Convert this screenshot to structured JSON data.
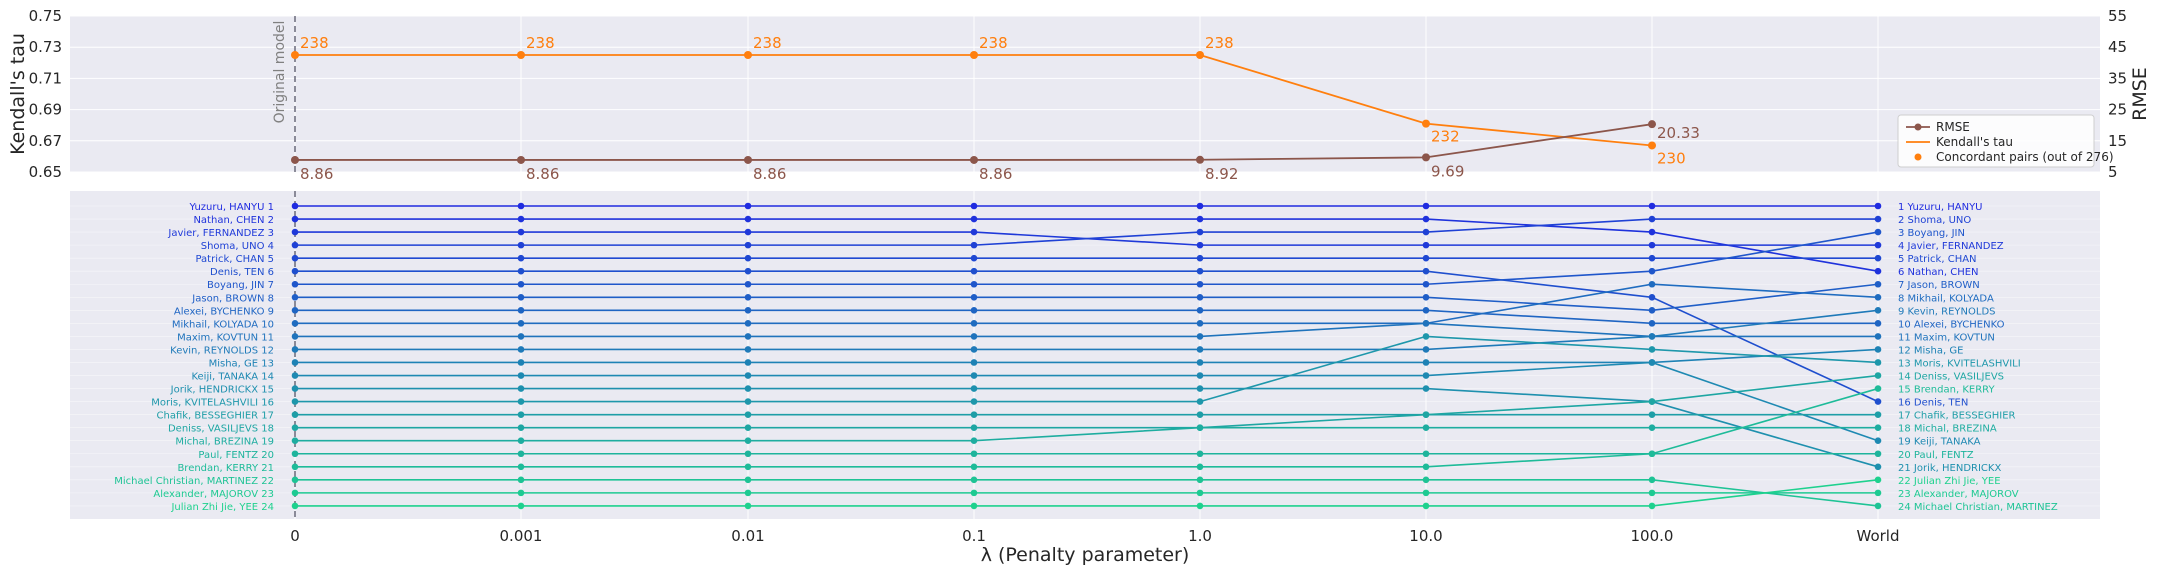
{
  "chart_data": [
    {
      "type": "line",
      "panel": "top",
      "categories": [
        "0",
        "0.001",
        "0.01",
        "0.1",
        "1.0",
        "10.0",
        "100.0"
      ],
      "left_axis": {
        "label": "Kendall's tau",
        "range": [
          0.65,
          0.75
        ],
        "ticks": [
          "0.65",
          "0.67",
          "0.69",
          "0.71",
          "0.73",
          "0.75"
        ]
      },
      "right_axis": {
        "label": "RMSE",
        "range": [
          5,
          55
        ],
        "ticks": [
          "5",
          "15",
          "25",
          "35",
          "45",
          "55"
        ]
      },
      "series": [
        {
          "name": "RMSE",
          "axis": "right",
          "color": "#8c564b",
          "marker": "circle",
          "values": [
            8.86,
            8.86,
            8.86,
            8.86,
            8.92,
            9.69,
            20.33
          ],
          "labels": [
            "8.86",
            "8.86",
            "8.86",
            "8.86",
            "8.92",
            "9.69",
            "20.33"
          ]
        },
        {
          "name": "Kendall's tau",
          "axis": "left",
          "color": "#ff7f0e",
          "marker": "none",
          "values": [
            0.725,
            0.725,
            0.725,
            0.725,
            0.725,
            0.681,
            0.667
          ]
        },
        {
          "name": "Concordant pairs (out of 276)",
          "axis": "left",
          "color": "#ff7f0e",
          "marker": "circle",
          "values": [
            0.725,
            0.725,
            0.725,
            0.725,
            0.725,
            0.681,
            0.667
          ],
          "labels": [
            "238",
            "238",
            "238",
            "238",
            "238",
            "232",
            "230"
          ]
        }
      ],
      "annotation": "Original model",
      "legend_position": "lower-right",
      "grid": true
    },
    {
      "type": "line",
      "panel": "bottom",
      "xlabel": "λ (Penalty parameter)",
      "categories": [
        "0",
        "0.001",
        "0.01",
        "0.1",
        "1.0",
        "10.0",
        "100.0",
        "World"
      ],
      "left_labels": [
        "Yuzuru, HANYU 1",
        "Nathan, CHEN 2",
        "Javier, FERNANDEZ 3",
        "Shoma, UNO 4",
        "Patrick, CHAN 5",
        "Denis, TEN 6",
        "Boyang, JIN 7",
        "Jason, BROWN 8",
        "Alexei, BYCHENKO 9",
        "Mikhail, KOLYADA 10",
        "Maxim, KOVTUN 11",
        "Kevin, REYNOLDS 12",
        "Misha, GE 13",
        "Keiji, TANAKA 14",
        "Jorik, HENDRICKX 15",
        "Moris, KVITELASHVILI 16",
        "Chafik, BESSEGHIER 17",
        "Deniss, VASILJEVS 18",
        "Michal, BREZINA 19",
        "Paul, FENTZ 20",
        "Brendan, KERRY 21",
        "Michael Christian, MARTINEZ 22",
        "Alexander, MAJOROV 23",
        "Julian Zhi Jie, YEE 24"
      ],
      "right_labels": [
        "1 Yuzuru, HANYU",
        "2 Shoma, UNO",
        "3 Boyang, JIN",
        "4 Javier, FERNANDEZ",
        "5 Patrick, CHAN",
        "6 Nathan, CHEN",
        "7 Jason, BROWN",
        "8 Mikhail, KOLYADA",
        "9 Kevin, REYNOLDS",
        "10 Alexei, BYCHENKO",
        "11 Maxim, KOVTUN",
        "12 Misha, GE",
        "13 Moris, KVITELASHVILI",
        "14 Deniss, VASILJEVS",
        "15 Brendan, KERRY",
        "16 Denis, TEN",
        "17 Chafik, BESSEGHIER",
        "18 Michal, BREZINA",
        "19 Keiji, TANAKA",
        "20 Paul, FENTZ",
        "21 Jorik, HENDRICKX",
        "22 Julian Zhi Jie, YEE",
        "23 Alexander, MAJOROV",
        "24 Michael Christian, MARTINEZ"
      ],
      "series": [
        {
          "name": "Yuzuru, HANYU",
          "ranks": [
            1,
            1,
            1,
            1,
            1,
            1,
            1,
            1
          ]
        },
        {
          "name": "Nathan, CHEN",
          "ranks": [
            2,
            2,
            2,
            2,
            2,
            2,
            3,
            6
          ]
        },
        {
          "name": "Javier, FERNANDEZ",
          "ranks": [
            3,
            3,
            3,
            3,
            4,
            4,
            4,
            4
          ]
        },
        {
          "name": "Shoma, UNO",
          "ranks": [
            4,
            4,
            4,
            4,
            3,
            3,
            2,
            2
          ]
        },
        {
          "name": "Patrick, CHAN",
          "ranks": [
            5,
            5,
            5,
            5,
            5,
            5,
            5,
            5
          ]
        },
        {
          "name": "Denis, TEN",
          "ranks": [
            6,
            6,
            6,
            6,
            6,
            6,
            8,
            16
          ]
        },
        {
          "name": "Boyang, JIN",
          "ranks": [
            7,
            7,
            7,
            7,
            7,
            7,
            6,
            3
          ]
        },
        {
          "name": "Jason, BROWN",
          "ranks": [
            8,
            8,
            8,
            8,
            8,
            8,
            9,
            7
          ]
        },
        {
          "name": "Alexei, BYCHENKO",
          "ranks": [
            9,
            9,
            9,
            9,
            9,
            9,
            10,
            10
          ]
        },
        {
          "name": "Mikhail, KOLYADA",
          "ranks": [
            10,
            10,
            10,
            10,
            10,
            10,
            7,
            8
          ]
        },
        {
          "name": "Maxim, KOVTUN",
          "ranks": [
            11,
            11,
            11,
            11,
            11,
            10,
            11,
            11
          ]
        },
        {
          "name": "Kevin, REYNOLDS",
          "ranks": [
            12,
            12,
            12,
            12,
            12,
            12,
            11,
            9
          ]
        },
        {
          "name": "Misha, GE",
          "ranks": [
            13,
            13,
            13,
            13,
            13,
            13,
            13,
            12
          ]
        },
        {
          "name": "Keiji, TANAKA",
          "ranks": [
            14,
            14,
            14,
            14,
            14,
            14,
            13,
            19
          ]
        },
        {
          "name": "Jorik, HENDRICKX",
          "ranks": [
            15,
            15,
            15,
            15,
            15,
            15,
            16,
            21
          ]
        },
        {
          "name": "Moris, KVITELASHVILI",
          "ranks": [
            16,
            16,
            16,
            16,
            16,
            11,
            12,
            13
          ]
        },
        {
          "name": "Chafik, BESSEGHIER",
          "ranks": [
            17,
            17,
            17,
            17,
            17,
            17,
            17,
            17
          ]
        },
        {
          "name": "Deniss, VASILJEVS",
          "ranks": [
            18,
            18,
            18,
            18,
            18,
            17,
            16,
            14
          ]
        },
        {
          "name": "Michal, BREZINA",
          "ranks": [
            19,
            19,
            19,
            19,
            18,
            18,
            18,
            18
          ]
        },
        {
          "name": "Paul, FENTZ",
          "ranks": [
            20,
            20,
            20,
            20,
            20,
            20,
            20,
            20
          ]
        },
        {
          "name": "Brendan, KERRY",
          "ranks": [
            21,
            21,
            21,
            21,
            21,
            21,
            20,
            15
          ]
        },
        {
          "name": "Michael Christian, MARTINEZ",
          "ranks": [
            22,
            22,
            22,
            22,
            22,
            22,
            22,
            24
          ]
        },
        {
          "name": "Alexander, MAJOROV",
          "ranks": [
            23,
            23,
            23,
            23,
            23,
            23,
            23,
            23
          ]
        },
        {
          "name": "Julian Zhi Jie, YEE",
          "ranks": [
            24,
            24,
            24,
            24,
            24,
            24,
            24,
            22
          ]
        }
      ],
      "colors": {
        "start": "#1f2be0",
        "end": "#1ed18e"
      },
      "grid": true
    }
  ]
}
